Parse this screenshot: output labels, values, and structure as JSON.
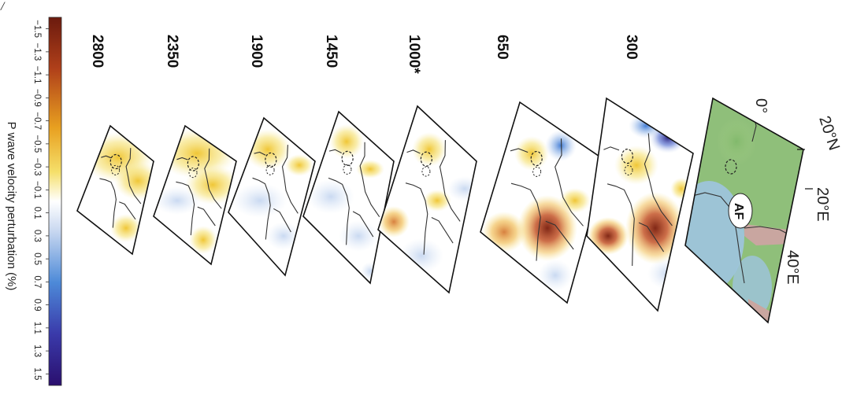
{
  "corner_mark": "/",
  "colorbar": {
    "title": "P wave velocity perturbation (%)",
    "ticks": [
      "−1.5",
      "−1.3",
      "−1.1",
      "−0.9",
      "−0.7",
      "−0.5",
      "−0.3",
      "−0.1",
      "0.1",
      "0.3",
      "0.5",
      "0.7",
      "0.9",
      "1.1",
      "1.3",
      "1.5"
    ],
    "colors": {
      "slow": "#6b1a0e",
      "neutral": "#ffffff",
      "fast": "#2a0f6e"
    }
  },
  "depth_labels": [
    "2800",
    "2350",
    "1900",
    "1450",
    "1000*",
    "650",
    "300"
  ],
  "basemap": {
    "labels": {
      "lon0": "0°",
      "lat20": "20°N",
      "lon20": "20°E",
      "lon40": "40°E",
      "hotspot": "AF"
    },
    "colors": {
      "land": "#8fbf7a",
      "sea": "#9ec4e0",
      "highland": "#c9a6a0"
    }
  }
}
